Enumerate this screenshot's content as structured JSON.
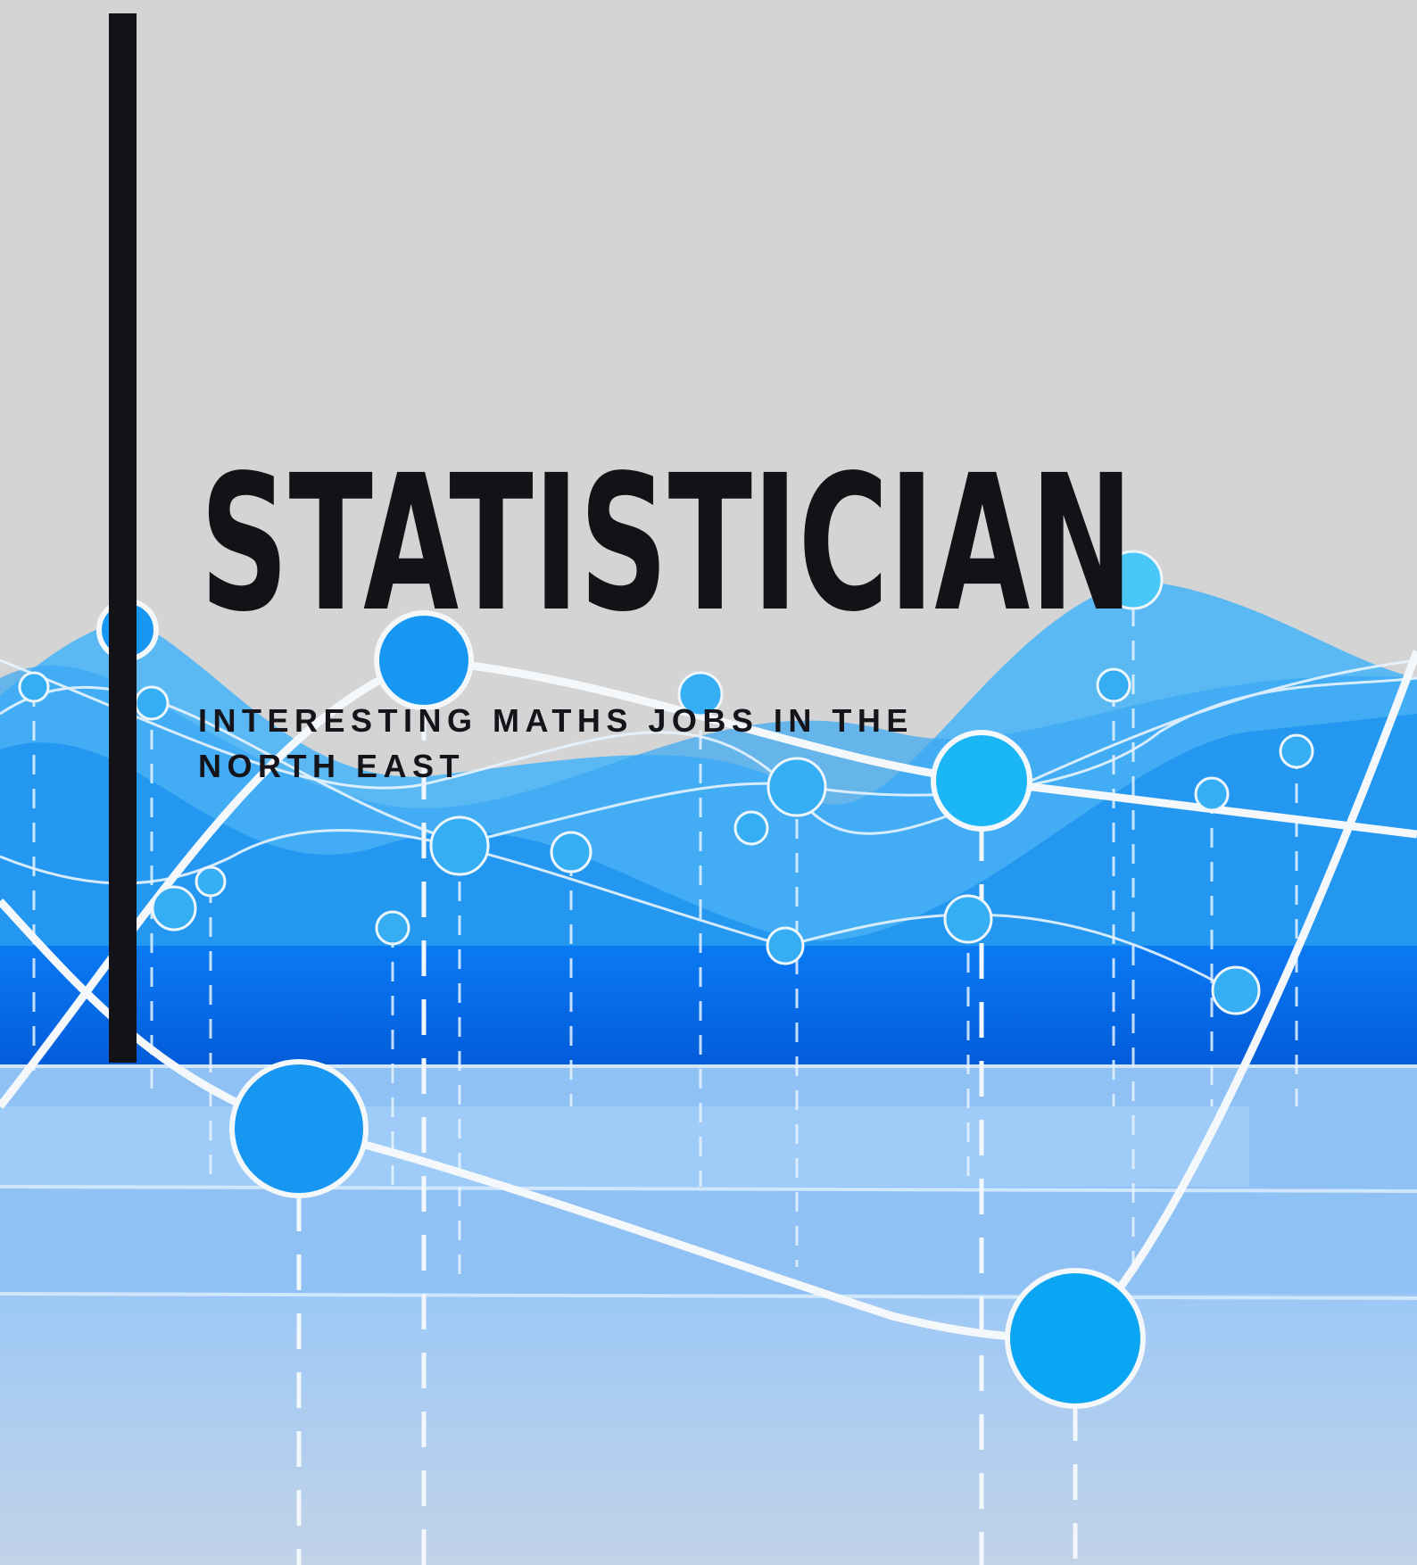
{
  "title": "STATISTICIAN",
  "subtitle": "INTERESTING MATHS JOBS IN THE NORTH EAST"
}
